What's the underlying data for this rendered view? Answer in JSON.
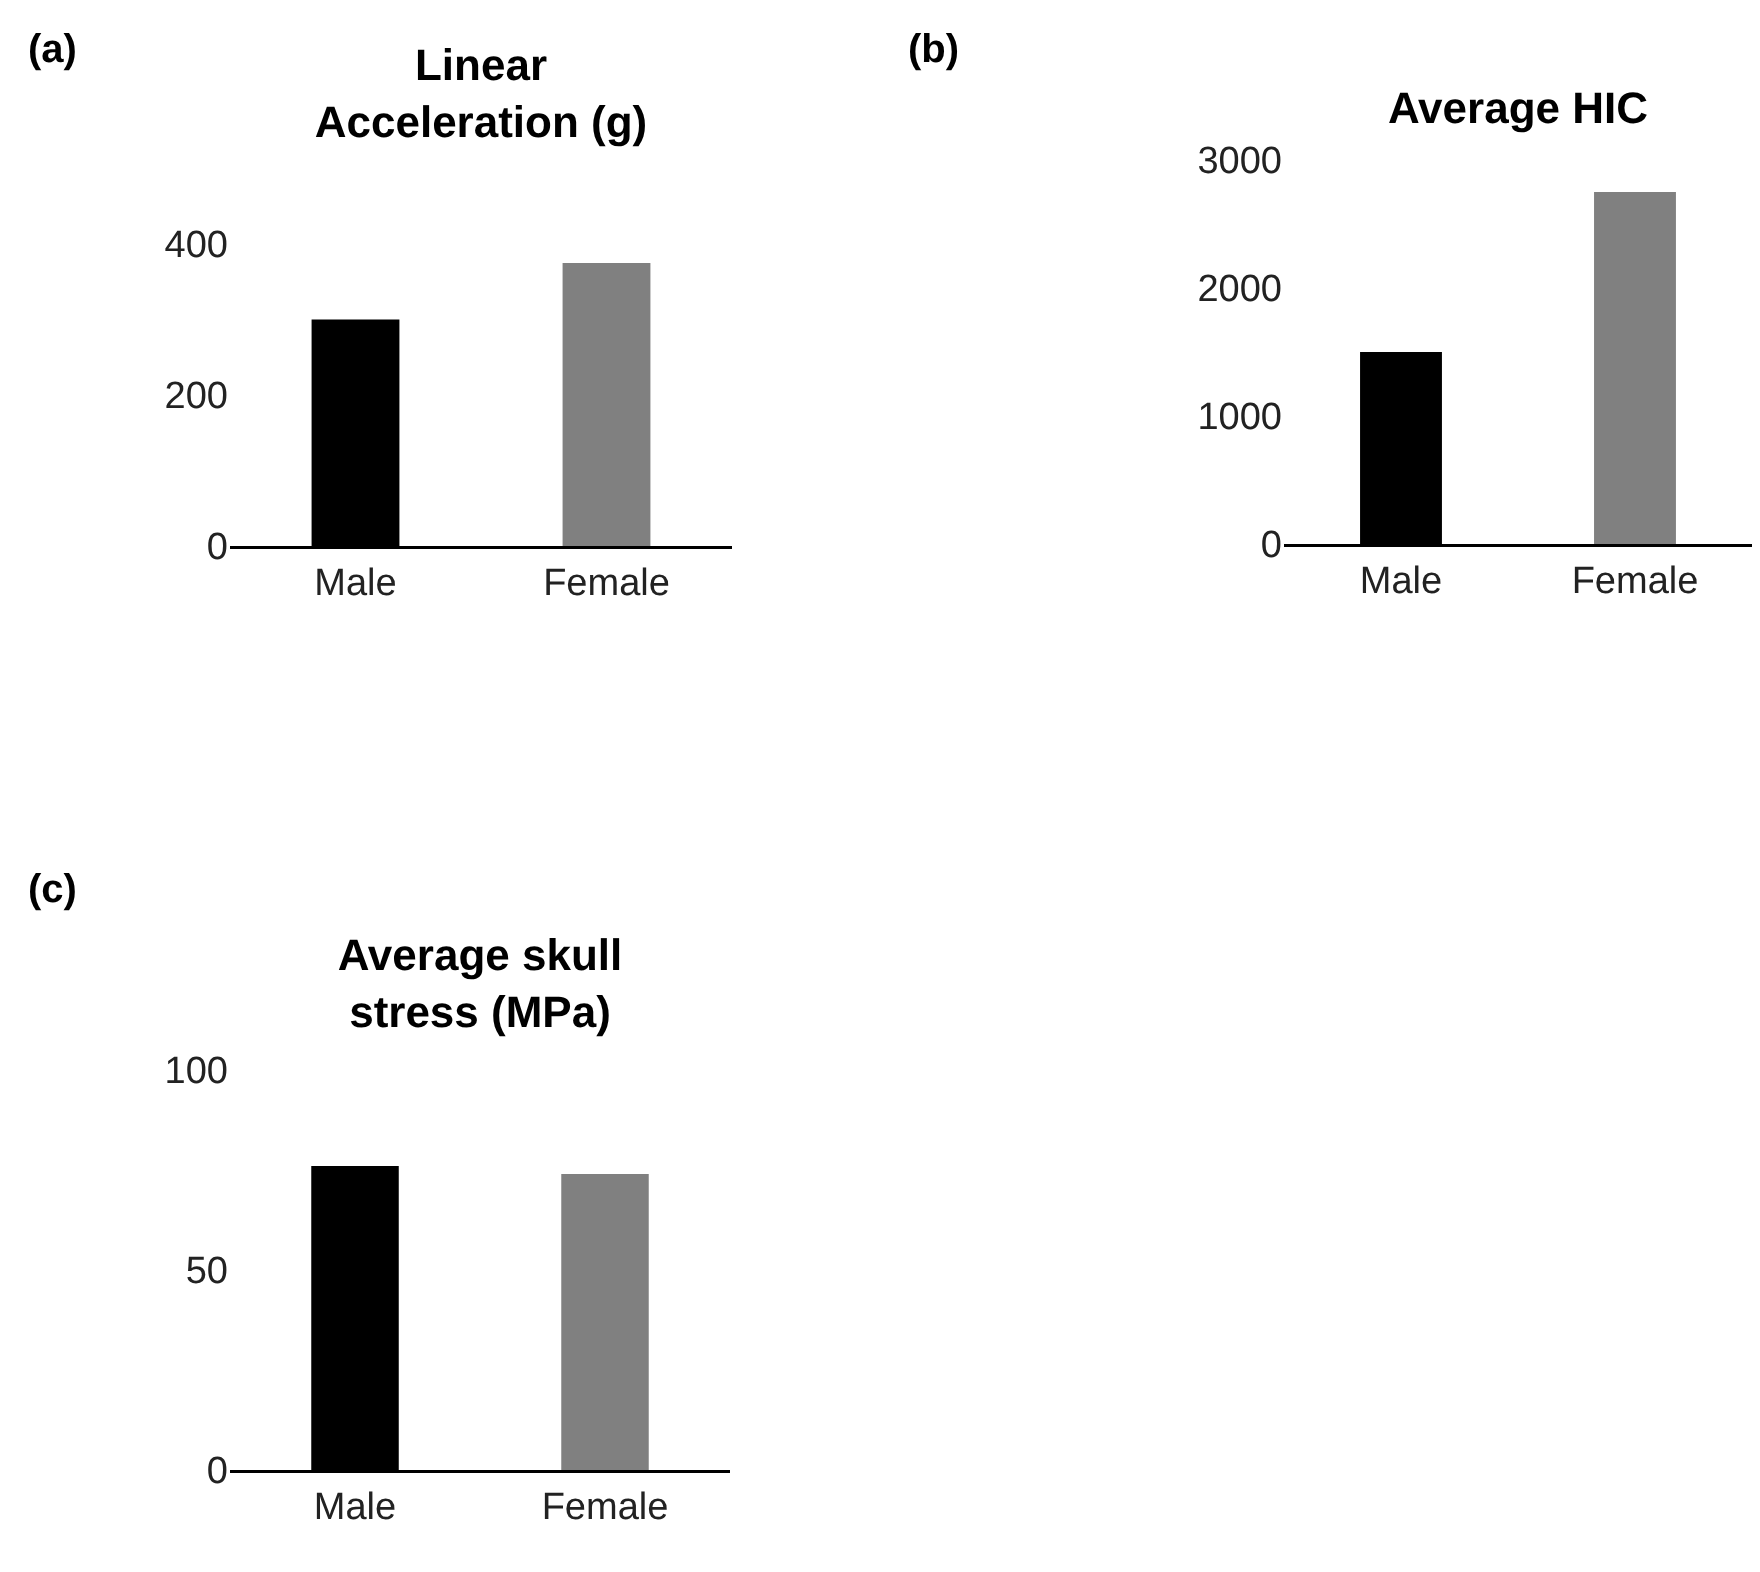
{
  "chart_data": [
    {
      "type": "bar",
      "title": "Linear Acceleration (g)",
      "annotations": [
        "(a)"
      ],
      "categories": [
        "Male",
        "Female"
      ],
      "values": [
        300,
        375
      ],
      "colors": [
        "#000000",
        "#808080"
      ],
      "ylim": [
        0,
        400
      ],
      "yticks": [
        0,
        200,
        400
      ]
    },
    {
      "type": "bar",
      "title": "Average HIC",
      "annotations": [
        "(b)"
      ],
      "categories": [
        "Male",
        "Female"
      ],
      "values": [
        1500,
        2750
      ],
      "colors": [
        "#000000",
        "#808080"
      ],
      "ylim": [
        0,
        3000
      ],
      "yticks": [
        0,
        1000,
        2000,
        3000
      ]
    },
    {
      "type": "bar",
      "title": "Average skull stress (MPa)",
      "annotations": [
        "(c)"
      ],
      "categories": [
        "Male",
        "Female"
      ],
      "values": [
        76,
        74
      ],
      "colors": [
        "#000000",
        "#808080"
      ],
      "ylim": [
        0,
        100
      ],
      "yticks": [
        0,
        50,
        100
      ]
    }
  ]
}
